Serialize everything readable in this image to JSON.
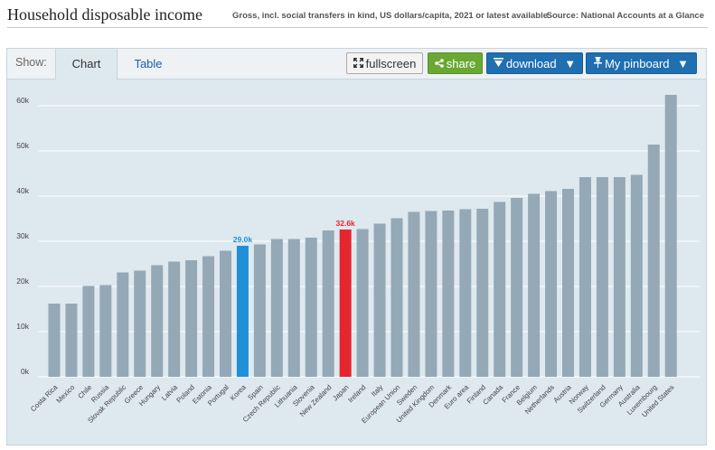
{
  "header": {
    "title": "Household disposable income",
    "subtitle": "Gross, incl. social transfers in kind, US dollars/capita, 2021 or latest available",
    "source": "Source: National Accounts at a Glance"
  },
  "toolbar": {
    "show_label": "Show:",
    "tab_chart": "Chart",
    "tab_table": "Table",
    "fullscreen_label": "fullscreen",
    "share_label": "share",
    "download_label": "download",
    "pinboard_label": "My pinboard"
  },
  "colors": {
    "default_bar": "#95a8b5",
    "korea": "#1f8fd8",
    "japan": "#e5262e",
    "background": "#dde8ef"
  },
  "chart_data": {
    "type": "bar",
    "categories": [
      "Costa Rica",
      "Mexico",
      "Chile",
      "Russia",
      "Slovak Republic",
      "Greece",
      "Hungary",
      "Latvia",
      "Poland",
      "Estonia",
      "Portugal",
      "Korea",
      "Spain",
      "Czech Republic",
      "Lithuania",
      "Slovenia",
      "New Zealand",
      "Japan",
      "Ireland",
      "Italy",
      "European Union",
      "Sweden",
      "United Kingdom",
      "Denmark",
      "Euro area",
      "Finland",
      "Canada",
      "France",
      "Belgium",
      "Netherlands",
      "Austria",
      "Norway",
      "Switzerland",
      "Germany",
      "Australia",
      "Luxembourg",
      "United States"
    ],
    "values": [
      16.2,
      16.2,
      20.1,
      20.3,
      23.1,
      23.5,
      24.7,
      25.5,
      25.8,
      26.7,
      27.9,
      29.0,
      29.3,
      30.5,
      30.5,
      30.8,
      32.4,
      32.6,
      32.7,
      33.9,
      35.1,
      36.5,
      36.7,
      36.8,
      37.1,
      37.2,
      38.7,
      39.6,
      40.5,
      41.1,
      41.6,
      44.2,
      44.2,
      44.2,
      44.7,
      51.4,
      62.4
    ],
    "highlight": [
      {
        "category": "Korea",
        "label": "29.0k",
        "color": "#1f8fd8"
      },
      {
        "category": "Japan",
        "label": "32.6k",
        "color": "#e5262e"
      }
    ],
    "yticks": [
      "0k",
      "10k",
      "20k",
      "30k",
      "40k",
      "50k",
      "60k"
    ],
    "ytick_values": [
      0,
      10,
      20,
      30,
      40,
      50,
      60
    ],
    "ylim": [
      0,
      63
    ],
    "unit": "thousands of US dollars/capita",
    "grid": true
  }
}
